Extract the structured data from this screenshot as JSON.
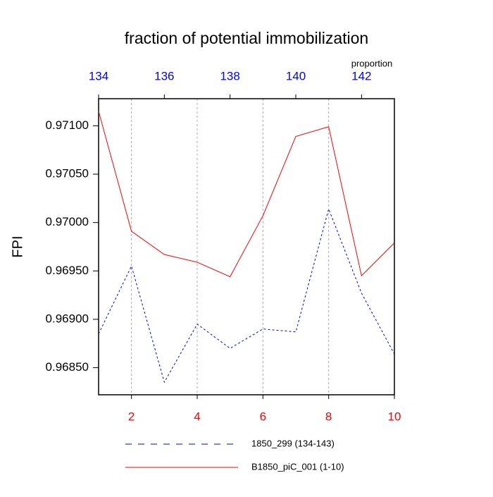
{
  "chart_data": {
    "type": "line",
    "title": "fraction of potential immobilization",
    "ylabel": "FPI",
    "x2label": "proportion",
    "xlim": [
      1,
      10
    ],
    "xticks": [
      2,
      4,
      6,
      8,
      10
    ],
    "xtick_color": "#ff0000",
    "x2lim": [
      134,
      143
    ],
    "x2ticks": [
      134,
      136,
      138,
      140,
      142
    ],
    "x2tick_color": "#0000ff",
    "ylim": [
      0.96822,
      0.97128
    ],
    "yticks": [
      {
        "value": 0.9685,
        "label": "0.96850"
      },
      {
        "value": 0.969,
        "label": "0.96900"
      },
      {
        "value": 0.9695,
        "label": "0.96950"
      },
      {
        "value": 0.97,
        "label": "0.97000"
      },
      {
        "value": 0.9705,
        "label": "0.97050"
      },
      {
        "value": 0.971,
        "label": "0.97100"
      }
    ],
    "grid": "x",
    "series": [
      {
        "name": "1850_299 (134-143)",
        "color": "#0000ff",
        "dash": true,
        "axis": "x2",
        "x": [
          134,
          135,
          136,
          137,
          138,
          139,
          140,
          141,
          142,
          143
        ],
        "values": [
          0.96885,
          0.96955,
          0.96835,
          0.96895,
          0.9687,
          0.9689,
          0.96887,
          0.97014,
          0.96927,
          0.96864
        ]
      },
      {
        "name": "B1850_piC_001 (1-10)",
        "color": "#ff0000",
        "dash": false,
        "x": [
          1,
          2,
          3,
          4,
          5,
          6,
          7,
          8,
          9,
          10
        ],
        "values": [
          0.97115,
          0.96991,
          0.96967,
          0.96959,
          0.96944,
          0.97007,
          0.97089,
          0.97099,
          0.96945,
          0.96979
        ]
      }
    ]
  }
}
